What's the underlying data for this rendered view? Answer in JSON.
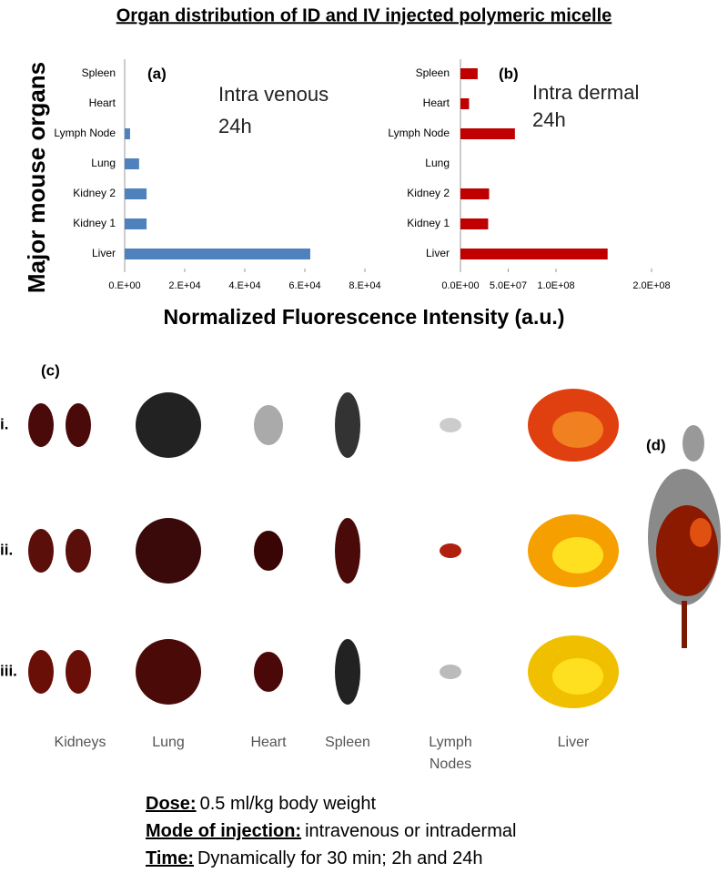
{
  "title": "Organ distribution of ID and IV injected polymeric micelle",
  "y_label": "Major mouse organs",
  "x_label": "Normalized Fluorescence Intensity (a.u.)",
  "chart_data": [
    {
      "type": "barh",
      "panel_label": "(a)",
      "annotation": [
        "Intra venous",
        "24h"
      ],
      "categories": [
        "Spleen",
        "Heart",
        "Lymph Node",
        "Lung",
        "Kidney 2",
        "Kidney 1",
        "Liver"
      ],
      "values": [
        0,
        0,
        1800,
        4800,
        7300,
        7300,
        61800
      ],
      "color": "#4f81bd",
      "xlim": [
        0,
        80000
      ],
      "xticks": [
        {
          "value": 0,
          "label": "0.E+00"
        },
        {
          "value": 20000,
          "label": "2.E+04"
        },
        {
          "value": 40000,
          "label": "4.E+04"
        },
        {
          "value": 60000,
          "label": "6.E+04"
        },
        {
          "value": 80000,
          "label": "8.E+04"
        }
      ]
    },
    {
      "type": "barh",
      "panel_label": "(b)",
      "annotation": [
        "Intra dermal",
        "24h"
      ],
      "categories": [
        "Spleen",
        "Heart",
        "Lymph Node",
        "Lung",
        "Kidney 2",
        "Kidney 1",
        "Liver"
      ],
      "values": [
        18000000,
        9000000,
        57000000,
        0,
        30000000,
        29000000,
        154000000
      ],
      "color": "#c00000",
      "xlim": [
        0,
        200000000
      ],
      "xticks": [
        {
          "value": 0,
          "label": "0.0E+00"
        },
        {
          "value": 50000000,
          "label": "5.0E+07"
        },
        {
          "value": 100000000,
          "label": "1.0E+08"
        },
        {
          "value": 200000000,
          "label": "2.0E+08"
        }
      ]
    }
  ],
  "images": {
    "panel_label": "(c)",
    "rows": [
      "i.",
      "ii.",
      "iii."
    ],
    "columns": [
      "Kidneys",
      "Lung",
      "Heart",
      "Spleen",
      "Lymph Nodes",
      "Liver"
    ]
  },
  "whole_body": {
    "panel_label": "(d)"
  },
  "notes": [
    {
      "label": "Dose:",
      "text": "0.5 ml/kg body weight"
    },
    {
      "label": "Mode of injection:",
      "text": "intravenous or intradermal"
    },
    {
      "label": "Time:",
      "text": "Dynamically for 30 min; 2h and 24h"
    }
  ]
}
